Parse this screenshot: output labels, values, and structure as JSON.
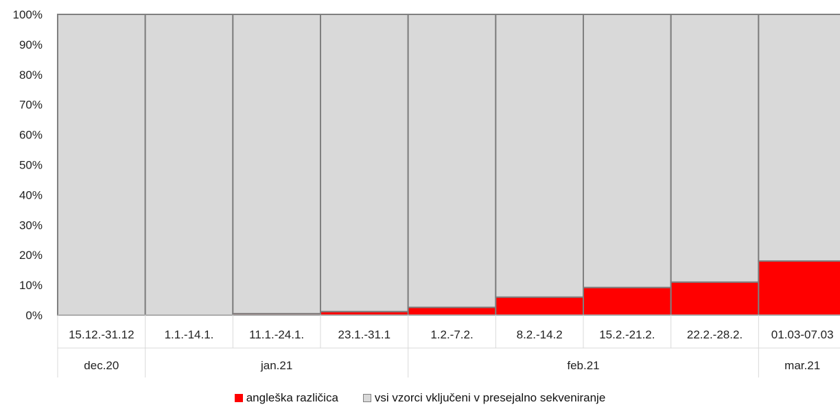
{
  "chart_data": {
    "type": "bar",
    "stacked": true,
    "orientation": "vertical",
    "gap_width": 0,
    "categories": [
      "15.12.-31.12",
      "1.1.-14.1.",
      "11.1.-24.1.",
      "23.1.-31.1",
      "1.2.-7.2.",
      "8.2.-14.2",
      "15.2.-21.2.",
      "22.2.-28.2.",
      "01.03-07.03"
    ],
    "groups": [
      {
        "label": "dec.20",
        "count": 1
      },
      {
        "label": "jan.21",
        "count": 3
      },
      {
        "label": "feb.21",
        "count": 4
      },
      {
        "label": "mar.21",
        "count": 1
      }
    ],
    "series": [
      {
        "name": "angleška različica",
        "color": "#ff0000",
        "values": [
          0.0,
          0.0,
          0.5,
          1.2,
          2.6,
          6.0,
          9.2,
          11.0,
          18.0
        ]
      },
      {
        "name": "vsi vzorci vključeni v presejalno sekveniranje",
        "color": "#d9d9d9",
        "values": [
          100.0,
          100.0,
          99.5,
          98.8,
          97.4,
          94.0,
          90.8,
          89.0,
          82.0
        ]
      }
    ],
    "ylim": [
      0,
      100
    ],
    "yticks": [
      "0%",
      "10%",
      "20%",
      "30%",
      "40%",
      "50%",
      "60%",
      "70%",
      "80%",
      "90%",
      "100%"
    ],
    "grid": false,
    "legend_position": "bottom",
    "bar_edge_color": "#7f7f7f"
  }
}
